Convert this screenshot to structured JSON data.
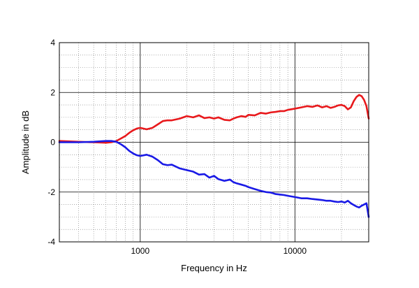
{
  "chart_data": {
    "type": "line",
    "xlabel": "Frequency in Hz",
    "ylabel": "Amplitude in dB",
    "xscale": "log",
    "xlim": [
      300,
      30000
    ],
    "ylim": [
      -4,
      4
    ],
    "x_tick_labels": [
      "1000",
      "10000"
    ],
    "y_tick_labels": [
      "4",
      "2",
      "0",
      "-2",
      "-4"
    ],
    "grid": "dotted, log minor and 0.5 dB minor",
    "legend": "none",
    "series": [
      {
        "color": "#e8191c",
        "x": [
          300,
          400,
          500,
          600,
          650,
          700,
          750,
          800,
          850,
          900,
          950,
          1000,
          1100,
          1200,
          1300,
          1400,
          1500,
          1600,
          1800,
          2000,
          2200,
          2400,
          2600,
          2800,
          3000,
          3200,
          3500,
          3800,
          4000,
          4200,
          4500,
          4800,
          5000,
          5500,
          6000,
          6500,
          7000,
          7500,
          8000,
          8500,
          9000,
          10000,
          11000,
          12000,
          13000,
          14000,
          15000,
          16000,
          17000,
          18000,
          19000,
          20000,
          21000,
          22000,
          23000,
          24000,
          25000,
          26000,
          27000,
          28000,
          29000,
          30000
        ],
        "y": [
          0.05,
          0.02,
          0.0,
          -0.02,
          0.0,
          0.05,
          0.15,
          0.25,
          0.38,
          0.48,
          0.55,
          0.58,
          0.52,
          0.58,
          0.72,
          0.85,
          0.88,
          0.88,
          0.95,
          1.05,
          1.0,
          1.08,
          0.97,
          1.0,
          0.95,
          1.0,
          0.9,
          0.88,
          0.95,
          1.0,
          1.05,
          1.02,
          1.1,
          1.08,
          1.18,
          1.15,
          1.2,
          1.22,
          1.25,
          1.25,
          1.3,
          1.35,
          1.4,
          1.45,
          1.42,
          1.48,
          1.4,
          1.45,
          1.38,
          1.42,
          1.48,
          1.5,
          1.45,
          1.32,
          1.4,
          1.65,
          1.82,
          1.9,
          1.85,
          1.7,
          1.45,
          0.95
        ]
      },
      {
        "color": "#1a1ae6",
        "x": [
          300,
          400,
          500,
          600,
          650,
          700,
          750,
          800,
          850,
          900,
          950,
          1000,
          1100,
          1200,
          1300,
          1400,
          1500,
          1600,
          1800,
          2000,
          2200,
          2400,
          2600,
          2800,
          3000,
          3200,
          3500,
          3800,
          4000,
          4200,
          4500,
          4800,
          5000,
          5500,
          6000,
          6500,
          7000,
          7500,
          8000,
          8500,
          9000,
          10000,
          11000,
          12000,
          13000,
          14000,
          15000,
          16000,
          17000,
          18000,
          19000,
          20000,
          21000,
          22000,
          23000,
          24000,
          25000,
          26000,
          27000,
          28000,
          29000,
          30000
        ],
        "y": [
          0.0,
          0.0,
          0.02,
          0.05,
          0.05,
          0.02,
          -0.08,
          -0.2,
          -0.35,
          -0.45,
          -0.52,
          -0.55,
          -0.5,
          -0.58,
          -0.72,
          -0.88,
          -0.92,
          -0.9,
          -1.05,
          -1.12,
          -1.18,
          -1.3,
          -1.28,
          -1.42,
          -1.35,
          -1.48,
          -1.55,
          -1.5,
          -1.6,
          -1.65,
          -1.7,
          -1.75,
          -1.8,
          -1.88,
          -1.95,
          -2.0,
          -2.02,
          -2.08,
          -2.1,
          -2.12,
          -2.15,
          -2.2,
          -2.25,
          -2.25,
          -2.28,
          -2.3,
          -2.32,
          -2.35,
          -2.35,
          -2.38,
          -2.4,
          -2.38,
          -2.42,
          -2.35,
          -2.45,
          -2.52,
          -2.58,
          -2.62,
          -2.55,
          -2.5,
          -2.45,
          -3.0
        ]
      }
    ]
  }
}
